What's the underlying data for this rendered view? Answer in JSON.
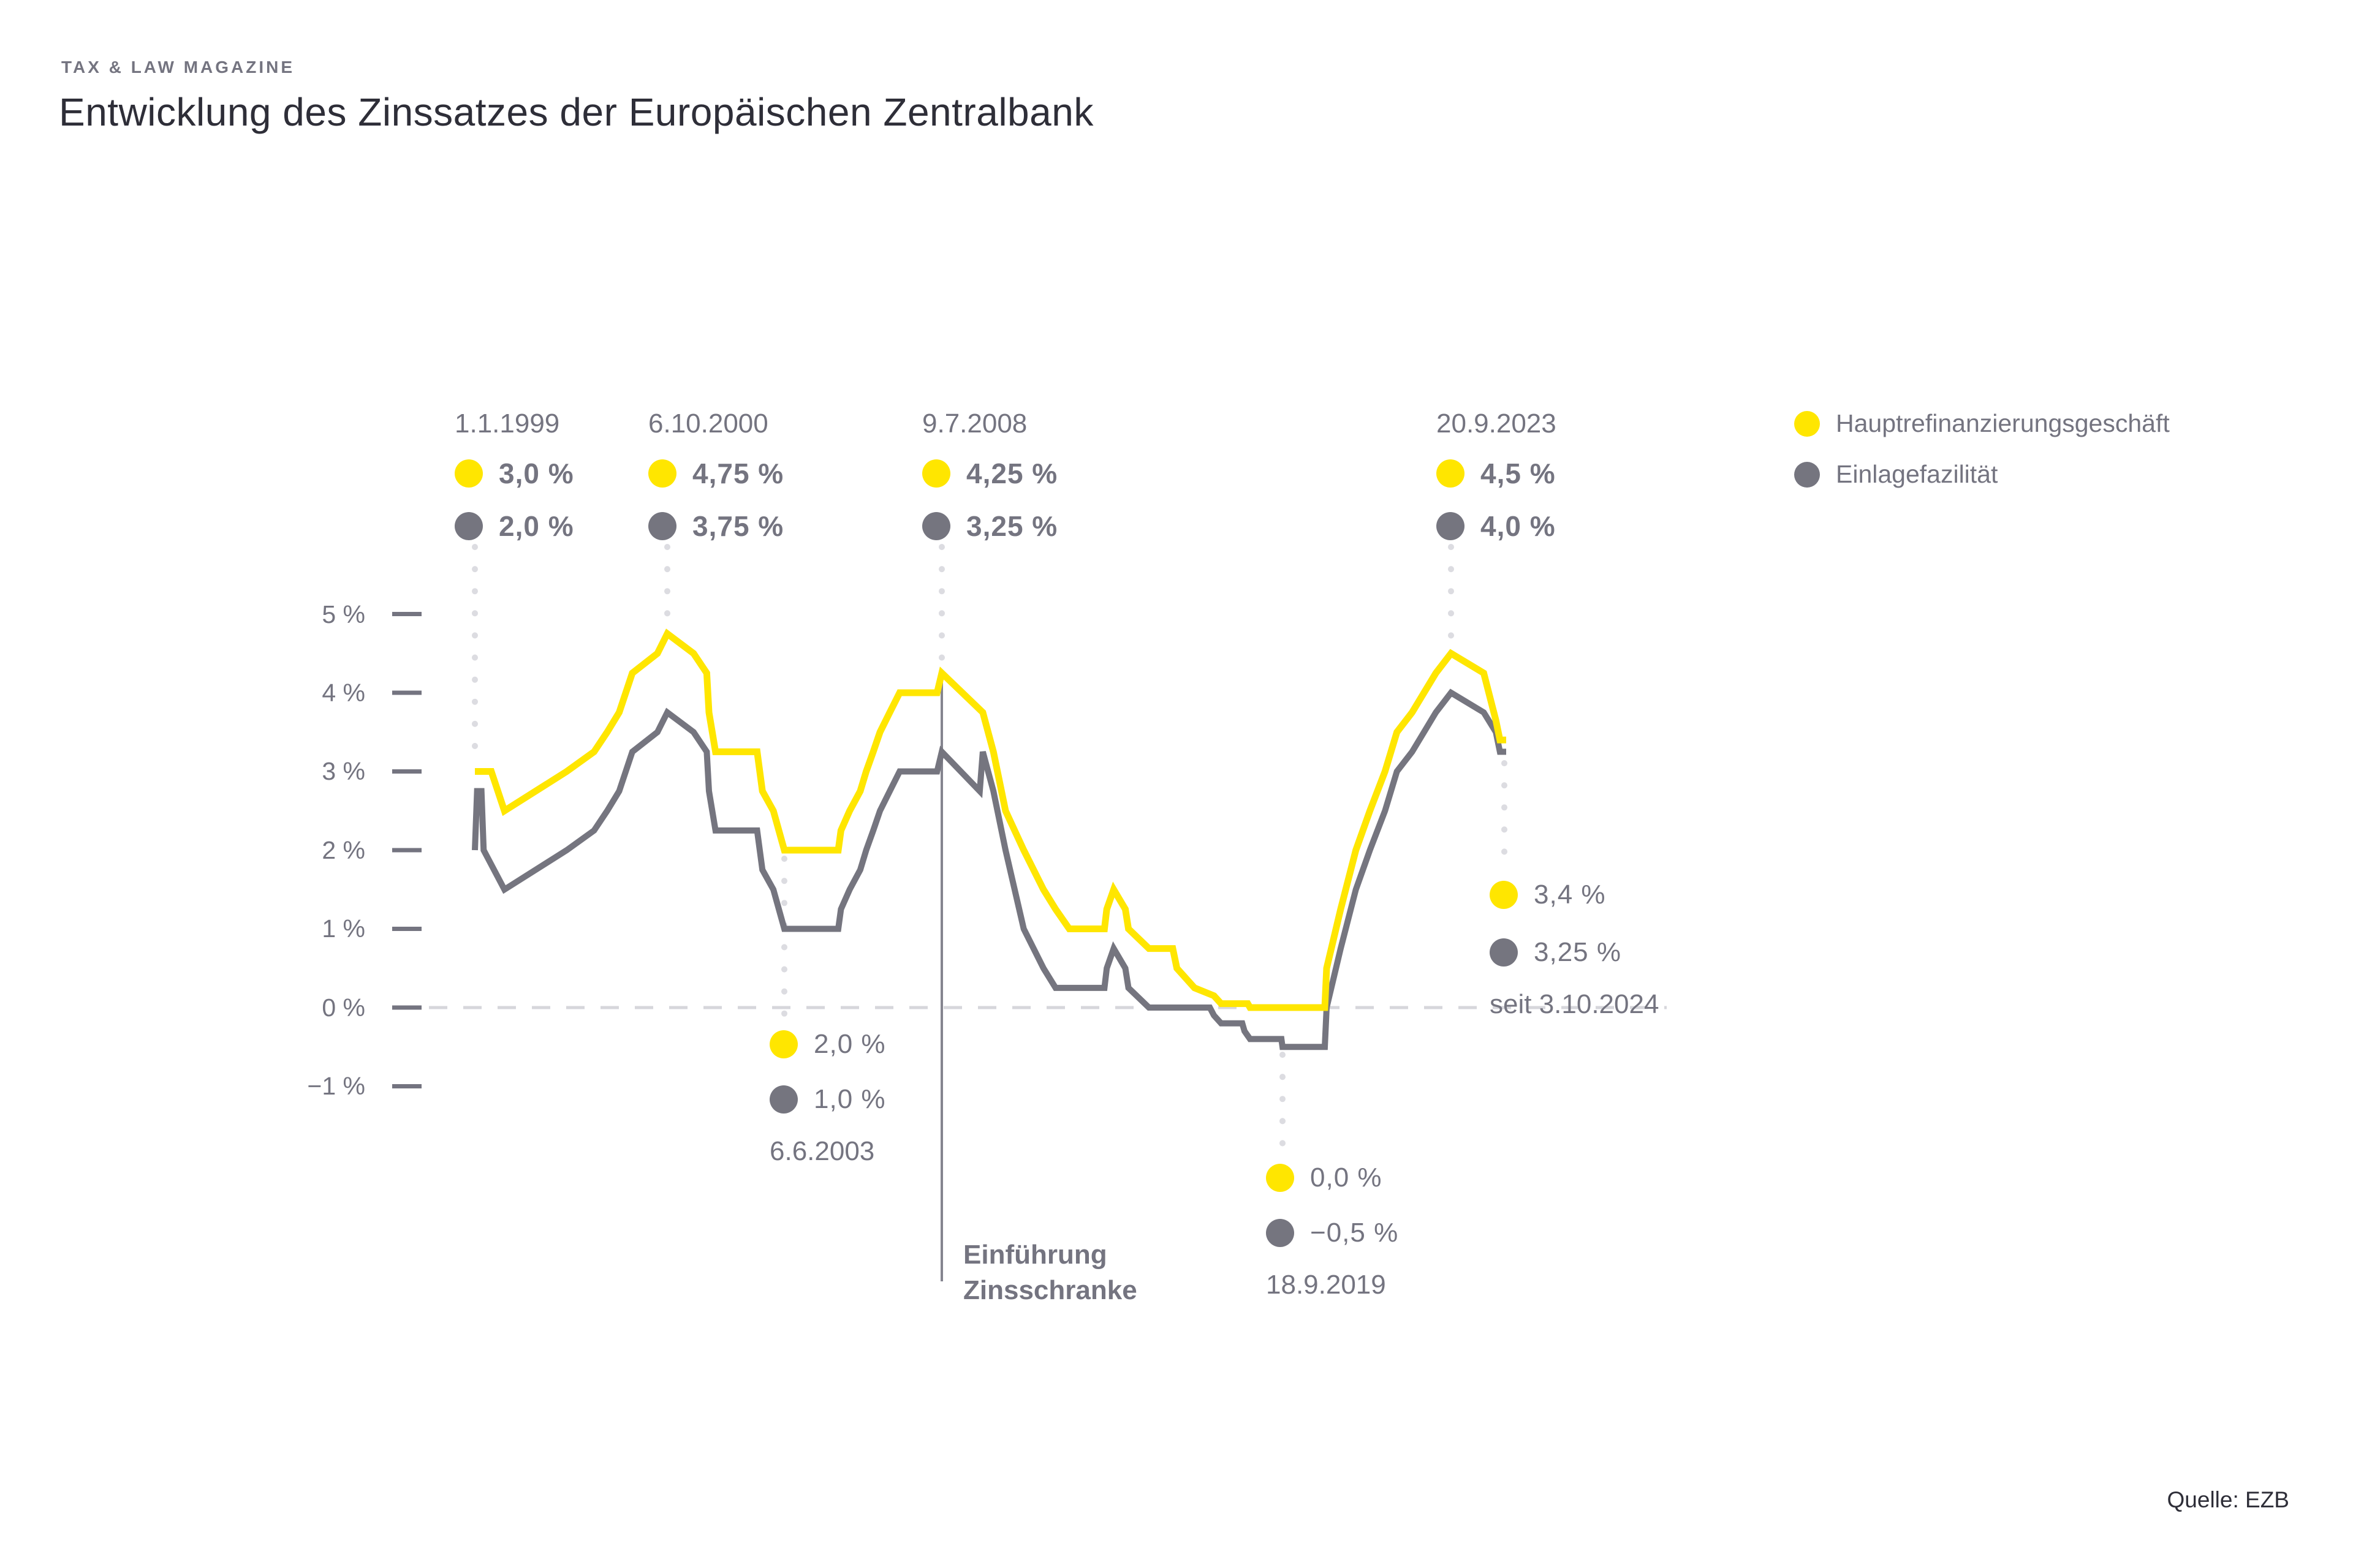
{
  "page": {
    "kicker": "TAX & LAW MAGAZINE",
    "title": "Entwicklung des Zinssatzes der Europäischen Zentralbank",
    "source": "Quelle: EZB"
  },
  "legend": {
    "items": [
      {
        "label": "Hauptrefinanzierungsgeschäft",
        "color": "#FFE600"
      },
      {
        "label": "Einlagefazilität",
        "color": "#747480"
      }
    ]
  },
  "chart_data": {
    "type": "line",
    "x_unit": "decimal_year",
    "x_range": [
      1999.0,
      2024.95
    ],
    "ylim": [
      -1,
      5
    ],
    "grid": "zero-line-dashed-only",
    "legend_position": "top-right",
    "yticks": [
      {
        "label": "5 %",
        "value": 5
      },
      {
        "label": "4 %",
        "value": 4
      },
      {
        "label": "3 %",
        "value": 3
      },
      {
        "label": "2 %",
        "value": 2
      },
      {
        "label": "1 %",
        "value": 1
      },
      {
        "label": "0 %",
        "value": 0
      },
      {
        "label": "−1 %",
        "value": -1
      }
    ],
    "series": [
      {
        "name": "Hauptrefinanzierungsgeschäft",
        "color": "#FFE600",
        "stroke_width": 11,
        "changes": [
          [
            1999.0,
            3.0
          ],
          [
            1999.15,
            3.0
          ],
          [
            1999.27,
            2.5
          ],
          [
            1999.84,
            3.0
          ],
          [
            2000.09,
            3.25
          ],
          [
            2000.21,
            3.5
          ],
          [
            2000.32,
            3.75
          ],
          [
            2000.44,
            4.25
          ],
          [
            2000.67,
            4.5
          ],
          [
            2000.76,
            4.75
          ],
          [
            2001.36,
            4.5
          ],
          [
            2001.66,
            4.25
          ],
          [
            2001.71,
            3.75
          ],
          [
            2001.86,
            3.25
          ],
          [
            2002.93,
            2.75
          ],
          [
            2003.18,
            2.5
          ],
          [
            2003.43,
            2.0
          ],
          [
            2005.93,
            2.25
          ],
          [
            2006.18,
            2.5
          ],
          [
            2006.45,
            2.75
          ],
          [
            2006.6,
            3.0
          ],
          [
            2006.78,
            3.25
          ],
          [
            2006.95,
            3.5
          ],
          [
            2007.2,
            3.75
          ],
          [
            2007.45,
            4.0
          ],
          [
            2008.52,
            4.25
          ],
          [
            2008.79,
            3.75
          ],
          [
            2008.86,
            3.25
          ],
          [
            2008.94,
            2.5
          ],
          [
            2009.06,
            2.0
          ],
          [
            2009.19,
            1.5
          ],
          [
            2009.27,
            1.25
          ],
          [
            2009.36,
            1.0
          ],
          [
            2011.28,
            1.25
          ],
          [
            2011.53,
            1.5
          ],
          [
            2011.86,
            1.25
          ],
          [
            2011.95,
            1.0
          ],
          [
            2012.53,
            0.75
          ],
          [
            2013.35,
            0.5
          ],
          [
            2013.87,
            0.25
          ],
          [
            2014.44,
            0.15
          ],
          [
            2014.69,
            0.05
          ],
          [
            2016.21,
            0.0
          ],
          [
            2022.57,
            0.5
          ],
          [
            2022.7,
            1.25
          ],
          [
            2022.84,
            2.0
          ],
          [
            2022.97,
            2.5
          ],
          [
            2023.11,
            3.0
          ],
          [
            2023.22,
            3.5
          ],
          [
            2023.36,
            3.75
          ],
          [
            2023.47,
            4.0
          ],
          [
            2023.58,
            4.25
          ],
          [
            2023.72,
            4.5
          ],
          [
            2024.45,
            4.25
          ],
          [
            2024.72,
            3.65
          ],
          [
            2024.81,
            3.4
          ]
        ]
      },
      {
        "name": "Einlagefazilität",
        "color": "#75757f",
        "stroke_width": 10,
        "changes": [
          [
            1999.0,
            2.0
          ],
          [
            1999.02,
            2.75
          ],
          [
            1999.06,
            2.75
          ],
          [
            1999.08,
            2.0
          ],
          [
            1999.27,
            1.5
          ],
          [
            1999.84,
            2.0
          ],
          [
            2000.09,
            2.25
          ],
          [
            2000.21,
            2.5
          ],
          [
            2000.32,
            2.75
          ],
          [
            2000.44,
            3.25
          ],
          [
            2000.67,
            3.5
          ],
          [
            2000.76,
            3.75
          ],
          [
            2001.36,
            3.5
          ],
          [
            2001.66,
            3.25
          ],
          [
            2001.71,
            2.75
          ],
          [
            2001.86,
            2.25
          ],
          [
            2002.93,
            1.75
          ],
          [
            2003.18,
            1.5
          ],
          [
            2003.43,
            1.0
          ],
          [
            2005.93,
            1.25
          ],
          [
            2006.18,
            1.5
          ],
          [
            2006.45,
            1.75
          ],
          [
            2006.6,
            2.0
          ],
          [
            2006.78,
            2.25
          ],
          [
            2006.95,
            2.5
          ],
          [
            2007.2,
            2.75
          ],
          [
            2007.45,
            3.0
          ],
          [
            2008.52,
            3.25
          ],
          [
            2008.77,
            2.75
          ],
          [
            2008.79,
            3.25
          ],
          [
            2008.86,
            2.75
          ],
          [
            2008.94,
            2.0
          ],
          [
            2009.06,
            1.0
          ],
          [
            2009.19,
            0.5
          ],
          [
            2009.27,
            0.25
          ],
          [
            2011.28,
            0.5
          ],
          [
            2011.53,
            0.75
          ],
          [
            2011.86,
            0.5
          ],
          [
            2011.95,
            0.25
          ],
          [
            2012.53,
            0.0
          ],
          [
            2014.44,
            -0.1
          ],
          [
            2014.69,
            -0.2
          ],
          [
            2015.92,
            -0.3
          ],
          [
            2016.21,
            -0.4
          ],
          [
            2019.71,
            -0.5
          ],
          [
            2022.57,
            0.0
          ],
          [
            2022.7,
            0.75
          ],
          [
            2022.84,
            1.5
          ],
          [
            2022.97,
            2.0
          ],
          [
            2023.11,
            2.5
          ],
          [
            2023.22,
            3.0
          ],
          [
            2023.36,
            3.25
          ],
          [
            2023.47,
            3.5
          ],
          [
            2023.58,
            3.75
          ],
          [
            2023.72,
            4.0
          ],
          [
            2024.45,
            3.75
          ],
          [
            2024.72,
            3.5
          ],
          [
            2024.81,
            3.25
          ]
        ]
      }
    ],
    "callouts": [
      {
        "date": "1.1.1999",
        "main_rate": "3,0 %",
        "deposit_rate": "2,0 %",
        "position": "above"
      },
      {
        "date": "6.10.2000",
        "main_rate": "4,75 %",
        "deposit_rate": "3,75 %",
        "position": "above"
      },
      {
        "date": "9.7.2008",
        "main_rate": "4,25 %",
        "deposit_rate": "3,25 %",
        "position": "above"
      },
      {
        "date": "20.9.2023",
        "main_rate": "4,5 %",
        "deposit_rate": "4,0 %",
        "position": "above"
      },
      {
        "date": "6.6.2003",
        "main_rate": "2,0 %",
        "deposit_rate": "1,0 %",
        "position": "below"
      },
      {
        "date": "18.9.2019",
        "main_rate": "0,0 %",
        "deposit_rate": "−0,5 %",
        "position": "below"
      },
      {
        "date": "seit 3.10.2024",
        "main_rate": "3,4 %",
        "deposit_rate": "3,25 %",
        "position": "right"
      }
    ],
    "marker": {
      "label_line1": "Einführung",
      "label_line2": "Zinsschranke",
      "at_date": "9.7.2008"
    },
    "colors": {
      "accent_yellow": "#FFE600",
      "line_gray": "#75757f",
      "text_gray": "#747480",
      "text_dark": "#2e2e38",
      "dotted_guide": "#dcdce1",
      "zero_dash": "#d6d6db"
    }
  }
}
